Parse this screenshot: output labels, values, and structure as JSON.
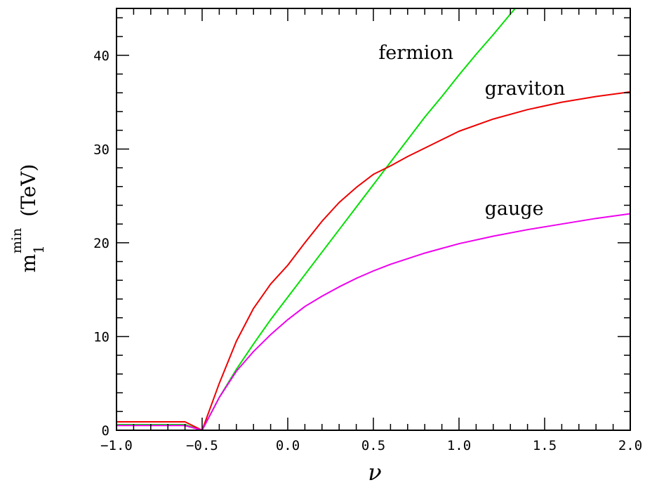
{
  "chart_data": {
    "type": "line",
    "xlabel": "ν",
    "ylabel": {
      "main": "m",
      "subscript": "1",
      "superscript": "min",
      "unit": "(TeV)"
    },
    "xlim": [
      -1.0,
      2.0
    ],
    "ylim": [
      0,
      45
    ],
    "x_ticks": [
      -1.0,
      -0.5,
      0.0,
      0.5,
      1.0,
      1.5,
      2.0
    ],
    "x_tick_labels": [
      "−1.0",
      "−0.5",
      "0.0",
      "0.5",
      "1.0",
      "1.5",
      "2.0"
    ],
    "y_ticks": [
      0,
      10,
      20,
      30,
      40
    ],
    "y_tick_labels": [
      "0",
      "10",
      "20",
      "30",
      "40"
    ],
    "x_minor_step": 0.1,
    "y_minor_step": 2,
    "grid": false,
    "series": [
      {
        "name": "fermion",
        "color": "#00e000",
        "x": [
          -1.0,
          -0.6,
          -0.5,
          -0.4,
          -0.3,
          -0.2,
          -0.1,
          0.0,
          0.1,
          0.2,
          0.3,
          0.4,
          0.5,
          0.6,
          0.7,
          0.8,
          0.9,
          1.0,
          1.1,
          1.2,
          1.3,
          1.4,
          1.5
        ],
        "y": [
          0.6,
          0.6,
          0.0,
          3.5,
          6.5,
          9.2,
          11.8,
          14.2,
          16.6,
          19.0,
          21.4,
          23.8,
          26.2,
          28.6,
          31.0,
          33.4,
          35.6,
          37.9,
          40.1,
          42.2,
          44.4,
          46.5,
          48.0
        ]
      },
      {
        "name": "graviton",
        "color": "#ee0000",
        "x": [
          -1.0,
          -0.6,
          -0.5,
          -0.4,
          -0.3,
          -0.2,
          -0.1,
          0.0,
          0.1,
          0.2,
          0.3,
          0.4,
          0.5,
          0.6,
          0.7,
          0.8,
          0.9,
          1.0,
          1.2,
          1.4,
          1.6,
          1.8,
          2.0
        ],
        "y": [
          0.9,
          0.9,
          0.0,
          5.0,
          9.5,
          13.0,
          15.6,
          17.6,
          20.0,
          22.3,
          24.3,
          25.9,
          27.3,
          28.2,
          29.2,
          30.1,
          31.0,
          31.9,
          33.2,
          34.2,
          35.0,
          35.6,
          36.1
        ]
      },
      {
        "name": "gauge",
        "color": "#ee00ee",
        "x": [
          -1.0,
          -0.6,
          -0.5,
          -0.4,
          -0.3,
          -0.2,
          -0.1,
          0.0,
          0.1,
          0.2,
          0.3,
          0.4,
          0.5,
          0.6,
          0.7,
          0.8,
          0.9,
          1.0,
          1.2,
          1.4,
          1.6,
          1.8,
          2.0
        ],
        "y": [
          0.5,
          0.5,
          0.0,
          3.5,
          6.3,
          8.4,
          10.2,
          11.8,
          13.2,
          14.3,
          15.3,
          16.2,
          17.0,
          17.7,
          18.3,
          18.9,
          19.4,
          19.9,
          20.7,
          21.4,
          22.0,
          22.6,
          23.1
        ]
      }
    ],
    "annotations": [
      {
        "text": "fermion",
        "x": 0.53,
        "y": 39.6
      },
      {
        "text": "graviton",
        "x": 1.15,
        "y": 35.8
      },
      {
        "text": "gauge",
        "x": 1.15,
        "y": 23.0
      }
    ]
  }
}
